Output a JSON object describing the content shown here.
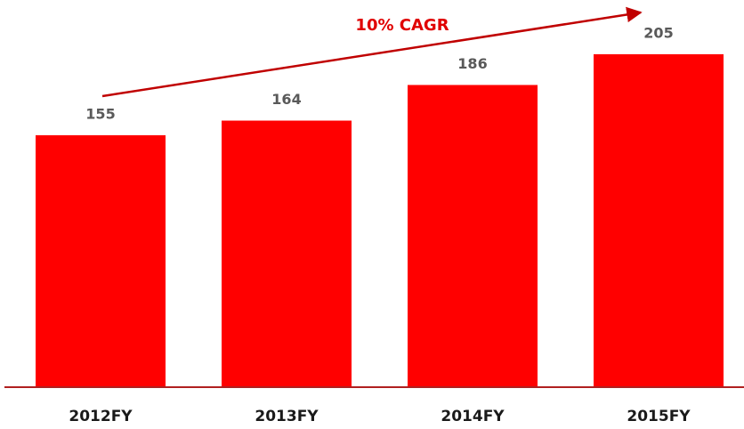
{
  "chart_data": {
    "type": "bar",
    "annotation": "10% CAGR",
    "categories": [
      "2012FY",
      "2013FY",
      "2014FY",
      "2015FY"
    ],
    "values": [
      155,
      164,
      186,
      205
    ],
    "color": "#ff0000"
  }
}
